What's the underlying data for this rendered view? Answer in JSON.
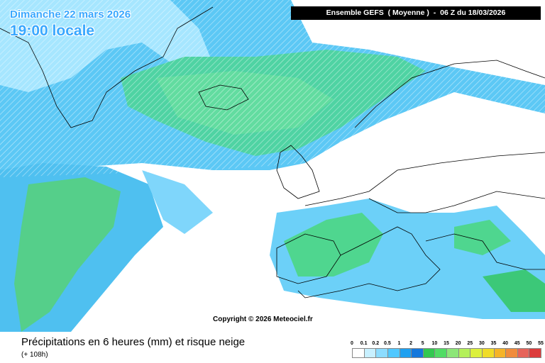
{
  "header": {
    "date": "Dimanche 22 mars 2026",
    "time": "19:00 locale",
    "model": "Ensemble GEFS  ( Moyenne )  -  06 Z du 18/03/2026"
  },
  "copyright": "Copyright © 2026 Meteociel.fr",
  "footer": {
    "title": "Précipitations en 6 heures (mm) et risque neige",
    "lead": "(+ 108h)"
  },
  "legend": {
    "labels": [
      "0",
      "0.1",
      "0.2",
      "0.5",
      "1",
      "2",
      "5",
      "10",
      "15",
      "20",
      "25",
      "30",
      "35",
      "40",
      "45",
      "50",
      "55"
    ],
    "colors": [
      "#ffffff",
      "#c8f0ff",
      "#8cdcff",
      "#50c8ff",
      "#1ea0f0",
      "#1478dc",
      "#32c850",
      "#50dc64",
      "#8ce678",
      "#b4f05a",
      "#dcf03c",
      "#f0dc28",
      "#f5b428",
      "#f08c3c",
      "#e6645a",
      "#dc3c3c"
    ]
  }
}
